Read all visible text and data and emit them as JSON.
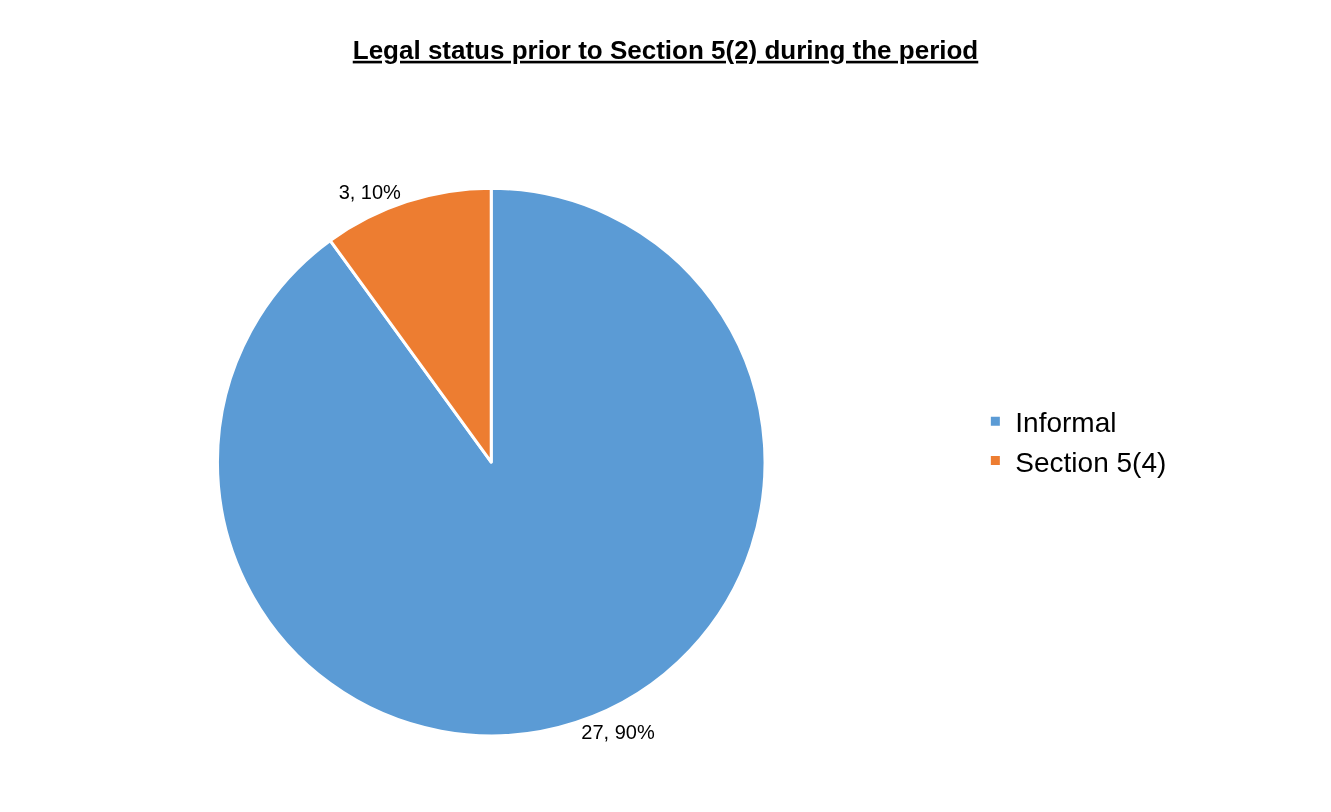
{
  "chart_data": {
    "type": "pie",
    "title": "Legal status prior to Section 5(2) during the period",
    "categories": [
      "Informal",
      "Section 5(4)"
    ],
    "values": [
      27,
      3
    ],
    "colors": [
      "#5b9bd5",
      "#ed7d31"
    ],
    "value_labels": [
      "27, 90%",
      "3, 10%"
    ],
    "legend": "right"
  }
}
